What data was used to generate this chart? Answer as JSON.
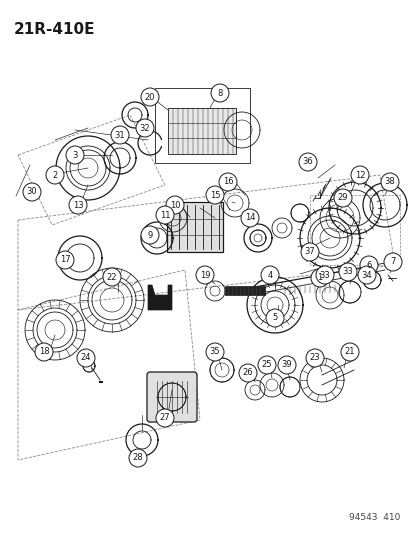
{
  "title": "21R-410E",
  "footer": "94543  410",
  "bg_color": "#ffffff",
  "title_fontsize": 11,
  "footer_fontsize": 6.5,
  "fig_width": 4.14,
  "fig_height": 5.33,
  "dpi": 100
}
